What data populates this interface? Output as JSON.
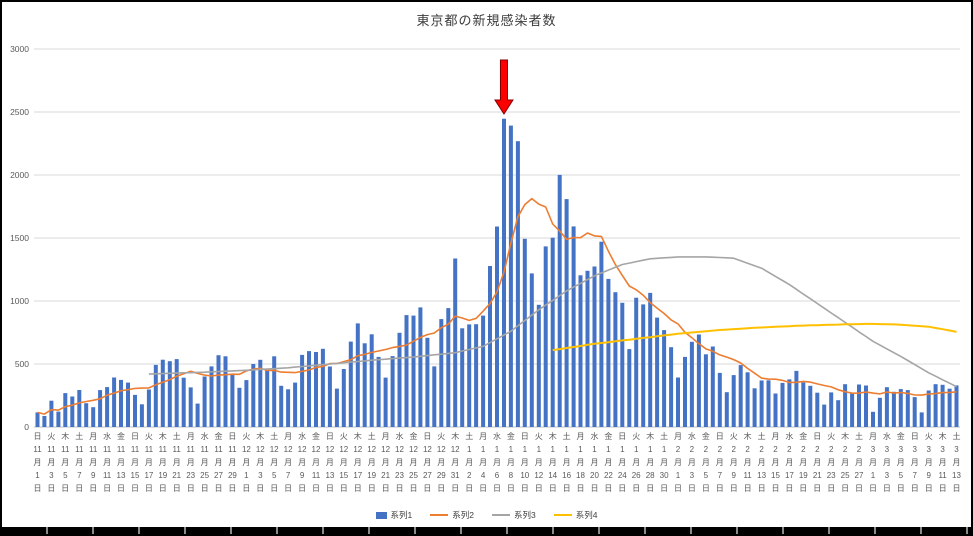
{
  "title": "東京都の新規感染者数",
  "legend": {
    "items": [
      {
        "label": "系列1",
        "color": "#4472C4",
        "marker": "bar"
      },
      {
        "label": "系列2",
        "color": "#ED7D31",
        "marker": "line"
      },
      {
        "label": "系列3",
        "color": "#A5A5A5",
        "marker": "line"
      },
      {
        "label": "系列4",
        "color": "#FFC000",
        "marker": "line"
      }
    ]
  },
  "colors": {
    "grid": "#D9D9D9",
    "axis": "#BFBFBF",
    "tick_text": "#595959",
    "title_text": "#3b3b3b",
    "frame": "#000000",
    "arrow_fill": "#FF0000",
    "arrow_stroke": "#7F0000"
  },
  "chart_data": {
    "type": "bar",
    "title": "東京都の新規感染者数",
    "ylim": [
      0,
      3000
    ],
    "yticks": [
      0,
      500,
      1000,
      1500,
      2000,
      2500,
      3000
    ],
    "x_unit": "daily values 11月1日〜3月13日, axis labels every 2 days (weekday over date)",
    "grid": "horizontal",
    "legend_position": "bottom",
    "x_labels": [
      "日|11|月|1|日",
      "火|11|月|3|日",
      "木|11|月|5|日",
      "土|11|月|7|日",
      "月|11|月|9|日",
      "水|11|月|11|日",
      "金|11|月|13|日",
      "日|11|月|15|日",
      "火|11|月|17|日",
      "木|11|月|19|日",
      "土|11|月|21|日",
      "月|11|月|23|日",
      "水|11|月|25|日",
      "金|11|月|27|日",
      "日|11|月|29|日",
      "火|12|月|1|日",
      "木|12|月|3|日",
      "土|12|月|5|日",
      "月|12|月|7|日",
      "水|12|月|9|日",
      "金|12|月|11|日",
      "日|12|月|13|日",
      "火|12|月|15|日",
      "木|12|月|17|日",
      "土|12|月|19|日",
      "月|12|月|21|日",
      "水|12|月|23|日",
      "金|12|月|25|日",
      "日|12|月|27|日",
      "火|12|月|29|日",
      "木|12|月|31|日",
      "土|1|月|2|日",
      "月|1|月|4|日",
      "水|1|月|6|日",
      "金|1|月|8|日",
      "日|1|月|10|日",
      "火|1|月|12|日",
      "木|1|月|14|日",
      "土|1|月|16|日",
      "月|1|月|18|日",
      "水|1|月|20|日",
      "金|1|月|22|日",
      "日|1|月|24|日",
      "火|1|月|26|日",
      "木|1|月|28|日",
      "土|1|月|30|日",
      "月|2|月|1|日",
      "水|2|月|3|日",
      "金|2|月|5|日",
      "日|2|月|7|日",
      "火|2|月|9|日",
      "木|2|月|11|日",
      "土|2|月|13|日",
      "月|2|月|15|日",
      "水|2|月|17|日",
      "金|2|月|19|日",
      "日|2|月|21|日",
      "火|2|月|23|日",
      "木|2|月|25|日",
      "土|2|月|27|日",
      "月|3|月|1|日",
      "水|3|月|3|日",
      "金|3|月|5|日",
      "日|3|月|7|日",
      "火|3|月|9|日",
      "木|3|月|11|日",
      "土|3|月|13|日"
    ],
    "series": [
      {
        "name": "系列1",
        "type": "bar",
        "color": "#4472C4",
        "start": 0,
        "values": [
          116,
          87,
          209,
          122,
          269,
          242,
          294,
          189,
          157,
          293,
          317,
          393,
          374,
          352,
          255,
          180,
          298,
          493,
          534,
          522,
          539,
          391,
          314,
          186,
          401,
          481,
          570,
          561,
          418,
          311,
          372,
          500,
          533,
          449,
          561,
          327,
          299,
          352,
          572,
          602,
          595,
          621,
          480,
          305,
          460,
          678,
          822,
          664,
          736,
          556,
          392,
          563,
          748,
          888,
          884,
          949,
          708,
          481,
          856,
          944,
          1337,
          783,
          814,
          816,
          884,
          1278,
          1591,
          2447,
          2392,
          2268,
          1494,
          1219,
          970,
          1433,
          1502,
          2001,
          1809,
          1592,
          1204,
          1240,
          1274,
          1471,
          1175,
          1070,
          986,
          618,
          1026,
          973,
          1064,
          868,
          769,
          633,
          393,
          556,
          676,
          734,
          577,
          639,
          429,
          276,
          412,
          491,
          434,
          307,
          369,
          371,
          266,
          350,
          378,
          445,
          353,
          327,
          272,
          178,
          275,
          213,
          340,
          270,
          337,
          329,
          121,
          232,
          316,
          279,
          301,
          293,
          237,
          116,
          290,
          340,
          335,
          304,
          330
        ]
      },
      {
        "name": "系列2",
        "type": "line",
        "color": "#ED7D31",
        "start": 0,
        "values": [
          116,
          102,
          137,
          134,
          161,
          174,
          191,
          202,
          212,
          224,
          252,
          269,
          288,
          296,
          306,
          309,
          310,
          335,
          355,
          376,
          403,
          422,
          442,
          426,
          412,
          405,
          412,
          415,
          419,
          418,
          445,
          459,
          466,
          449,
          449,
          436,
          434,
          432,
          442,
          452,
          473,
          481,
          503,
          504,
          519,
          534,
          566,
          576,
          592,
          603,
          615,
          630,
          640,
          650,
          681,
          711,
          733,
          746,
          788,
          816,
          880,
          865,
          846,
          862,
          919,
          979,
          1072,
          1230,
          1460,
          1668,
          1765,
          1813,
          1769,
          1746,
          1611,
          1555,
          1490,
          1504,
          1502,
          1540,
          1517,
          1513,
          1395,
          1289,
          1203,
          1119,
          1089,
          1046,
          987,
          944,
          901,
          850,
          818,
          751,
          708,
          661,
          620,
          601,
          572,
          555,
          535,
          508,
          465,
          427,
          388,
          380,
          379,
          370,
          354,
          355,
          362,
          356,
          342,
          329,
          318,
          295,
          280,
          268,
          269,
          277,
          269,
          263,
          278,
          269,
          274,
          267,
          254,
          253,
          262,
          265,
          273,
          274,
          279
        ]
      },
      {
        "name": "系列3",
        "type": "line",
        "color": "#A5A5A5",
        "start": 16,
        "values": [
          420,
          422,
          424,
          426,
          428,
          430,
          431,
          433,
          435,
          438,
          440,
          443,
          445,
          448,
          450,
          453,
          457,
          460,
          463,
          467,
          470,
          475,
          480,
          485,
          490,
          495,
          500,
          505,
          510,
          515,
          520,
          525,
          530,
          534,
          538,
          543,
          547,
          551,
          555,
          561,
          567,
          573,
          578,
          584,
          590,
          603,
          615,
          628,
          640,
          670,
          700,
          730,
          760,
          803,
          845,
          888,
          930,
          968,
          1005,
          1043,
          1080,
          1110,
          1140,
          1170,
          1200,
          1223,
          1245,
          1268,
          1290,
          1301,
          1313,
          1324,
          1335,
          1339,
          1343,
          1346,
          1350,
          1350,
          1350,
          1350,
          1350,
          1348,
          1345,
          1343,
          1340,
          1320,
          1300,
          1280,
          1260,
          1228,
          1195,
          1163,
          1130,
          1093,
          1055,
          1018,
          980,
          943,
          905,
          868,
          830,
          793,
          755,
          718,
          680,
          650,
          620,
          590,
          560,
          528,
          495,
          463,
          430,
          403,
          375,
          348,
          320
        ]
      },
      {
        "name": "系列4",
        "type": "line",
        "color": "#FFC000",
        "start": 74,
        "values": [
          610,
          618,
          627,
          635,
          643,
          652,
          660,
          667,
          673,
          680,
          687,
          693,
          700,
          707,
          713,
          720,
          727,
          733,
          740,
          745,
          750,
          755,
          760,
          765,
          770,
          773,
          777,
          780,
          783,
          787,
          790,
          793,
          795,
          798,
          800,
          803,
          805,
          807,
          808,
          810,
          812,
          813,
          815,
          816,
          817,
          818,
          818,
          817,
          816,
          814,
          812,
          808,
          804,
          800,
          796,
          786,
          776,
          766,
          755
        ]
      }
    ],
    "annotation": {
      "shape": "down-arrow",
      "color": "#FF0000",
      "bar_index": 67,
      "points_to_value": 2447
    }
  }
}
